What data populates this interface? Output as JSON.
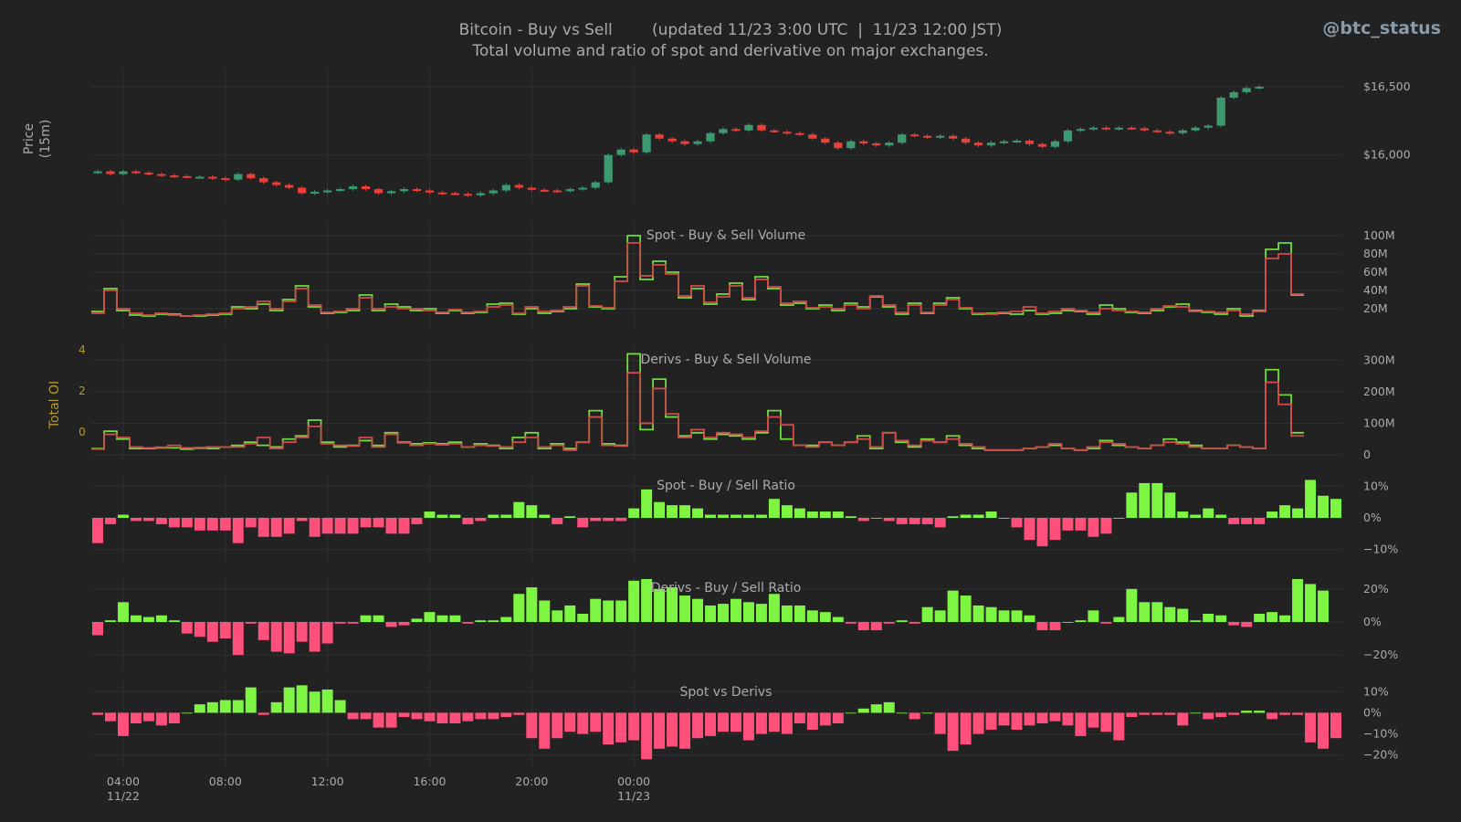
{
  "header": {
    "title": "Bitcoin - Buy vs Sell        (updated 11/23 3:00 UTC  |  11/23 12:00 JST)",
    "subtitle": "Total volume and ratio of spot and derivative on major exchanges.",
    "handle": "@btc_status"
  },
  "colors": {
    "background": "#222222",
    "grid": "#313131",
    "text": "#aaaaaa",
    "candle_up": "#3d9970",
    "candle_down": "#e8403a",
    "buy_line": "#6fdc3c",
    "sell_line": "#d24b4b",
    "bar_pos": "#7ef542",
    "bar_neg": "#ff4f7b",
    "oi_axis": "#b89a2a"
  },
  "chart_data": [
    {
      "id": "price",
      "type": "candlestick",
      "ylabel": "Price\n(15m)",
      "ylim": [
        15650,
        16600
      ],
      "yticks": [
        {
          "v": 16000,
          "label": "$16,000"
        },
        {
          "v": 16500,
          "label": "$16,500"
        }
      ],
      "x_unit": "hours since 11/22 02:45 UTC (30-min candles)",
      "x_ticks": [
        {
          "x": 1.25,
          "label": "04:00",
          "sub": "11/22"
        },
        {
          "x": 5.25,
          "label": "08:00",
          "sub": ""
        },
        {
          "x": 9.25,
          "label": "12:00",
          "sub": ""
        },
        {
          "x": 13.25,
          "label": "16:00",
          "sub": ""
        },
        {
          "x": 17.25,
          "label": "20:00",
          "sub": ""
        },
        {
          "x": 21.25,
          "label": "00:00",
          "sub": "11/23"
        }
      ],
      "closes": [
        15880,
        15860,
        15880,
        15870,
        15860,
        15850,
        15845,
        15840,
        15840,
        15830,
        15820,
        15860,
        15830,
        15800,
        15780,
        15760,
        15720,
        15730,
        15740,
        15750,
        15770,
        15750,
        15720,
        15735,
        15750,
        15740,
        15725,
        15720,
        15715,
        15705,
        15720,
        15740,
        15780,
        15760,
        15745,
        15740,
        15735,
        15750,
        15760,
        15800,
        16000,
        16040,
        16020,
        16150,
        16120,
        16100,
        16080,
        16100,
        16160,
        16190,
        16180,
        16220,
        16180,
        16170,
        16160,
        16150,
        16120,
        16090,
        16050,
        16100,
        16085,
        16070,
        16090,
        16150,
        16140,
        16130,
        16140,
        16120,
        16090,
        16070,
        16090,
        16100,
        16105,
        16080,
        16060,
        16100,
        16180,
        16190,
        16200,
        16190,
        16200,
        16195,
        16180,
        16170,
        16160,
        16180,
        16200,
        16215,
        16420,
        16460,
        16490,
        16500
      ]
    },
    {
      "id": "spot-volume",
      "type": "step-line",
      "title": "Spot - Buy & Sell Volume",
      "ylim": [
        0,
        110
      ],
      "yticks": [
        {
          "v": 20,
          "label": "20M"
        },
        {
          "v": 40,
          "label": "40M"
        },
        {
          "v": 60,
          "label": "60M"
        },
        {
          "v": 80,
          "label": "80M"
        },
        {
          "v": 100,
          "label": "100M"
        }
      ],
      "series": [
        {
          "name": "Buy",
          "color": "#6fdc3c",
          "values": [
            17,
            42,
            18,
            13,
            12,
            14,
            14,
            12,
            12,
            13,
            14,
            22,
            20,
            25,
            18,
            30,
            45,
            22,
            15,
            16,
            18,
            35,
            18,
            25,
            22,
            18,
            20,
            15,
            18,
            15,
            16,
            25,
            26,
            14,
            20,
            15,
            17,
            20,
            47,
            22,
            20,
            55,
            100,
            52,
            72,
            60,
            32,
            42,
            25,
            36,
            48,
            30,
            55,
            42,
            24,
            26,
            20,
            24,
            18,
            26,
            22,
            33,
            22,
            14,
            26,
            15,
            26,
            32,
            20,
            14,
            15,
            15,
            14,
            18,
            14,
            15,
            18,
            17,
            14,
            24,
            20,
            16,
            15,
            18,
            22,
            25,
            18,
            16,
            14,
            20,
            12,
            18,
            85,
            92,
            35
          ]
        },
        {
          "name": "Sell",
          "color": "#d24b4b",
          "values": [
            15,
            40,
            20,
            15,
            13,
            15,
            13,
            12,
            13,
            14,
            15,
            20,
            22,
            28,
            20,
            28,
            42,
            24,
            16,
            17,
            20,
            32,
            20,
            22,
            20,
            20,
            18,
            16,
            19,
            16,
            17,
            22,
            24,
            15,
            22,
            17,
            18,
            22,
            45,
            23,
            21,
            50,
            92,
            56,
            68,
            58,
            34,
            45,
            27,
            33,
            45,
            32,
            52,
            44,
            26,
            28,
            21,
            22,
            20,
            24,
            20,
            34,
            24,
            16,
            24,
            16,
            24,
            30,
            21,
            15,
            14,
            16,
            17,
            22,
            15,
            17,
            20,
            18,
            16,
            20,
            18,
            17,
            16,
            20,
            23,
            22,
            17,
            17,
            16,
            18,
            14,
            17,
            75,
            80,
            36
          ]
        }
      ]
    },
    {
      "id": "derivs-volume",
      "type": "step-line",
      "title": "Derivs - Buy & Sell Volume",
      "ylim": [
        0,
        330
      ],
      "yticks": [
        {
          "v": 0,
          "label": "0"
        },
        {
          "v": 100,
          "label": "100M"
        },
        {
          "v": 200,
          "label": "200M"
        },
        {
          "v": 300,
          "label": "300M"
        }
      ],
      "left_axis": {
        "label": "Total OI",
        "ticks": [
          "4",
          "2",
          "0"
        ]
      },
      "series": [
        {
          "name": "Buy",
          "color": "#6fdc3c",
          "values": [
            20,
            75,
            50,
            20,
            20,
            22,
            22,
            18,
            22,
            20,
            25,
            30,
            40,
            30,
            25,
            50,
            60,
            110,
            40,
            25,
            30,
            45,
            30,
            70,
            40,
            35,
            38,
            35,
            40,
            25,
            35,
            30,
            20,
            55,
            70,
            20,
            35,
            20,
            40,
            140,
            35,
            30,
            320,
            80,
            240,
            120,
            60,
            70,
            50,
            65,
            60,
            50,
            70,
            140,
            50,
            30,
            30,
            40,
            30,
            40,
            60,
            20,
            70,
            40,
            25,
            50,
            40,
            60,
            30,
            20,
            15,
            15,
            15,
            20,
            25,
            30,
            20,
            15,
            20,
            45,
            30,
            25,
            20,
            30,
            50,
            40,
            30,
            20,
            20,
            30,
            25,
            20,
            270,
            190,
            70
          ]
        },
        {
          "name": "Sell",
          "color": "#d24b4b",
          "values": [
            18,
            65,
            55,
            25,
            22,
            24,
            30,
            22,
            20,
            25,
            25,
            25,
            35,
            55,
            20,
            40,
            55,
            90,
            35,
            30,
            28,
            55,
            25,
            65,
            38,
            30,
            35,
            32,
            35,
            25,
            30,
            28,
            25,
            40,
            55,
            25,
            30,
            15,
            40,
            120,
            30,
            28,
            260,
            100,
            210,
            130,
            55,
            80,
            55,
            70,
            65,
            55,
            75,
            120,
            95,
            30,
            25,
            40,
            30,
            40,
            50,
            25,
            70,
            45,
            30,
            45,
            40,
            50,
            35,
            25,
            15,
            15,
            15,
            20,
            25,
            35,
            20,
            15,
            25,
            40,
            35,
            25,
            20,
            30,
            40,
            35,
            25,
            20,
            20,
            30,
            25,
            20,
            230,
            160,
            60
          ]
        }
      ]
    },
    {
      "id": "spot-ratio",
      "type": "bar",
      "title": "Spot - Buy / Sell Ratio",
      "ylim": [
        -13,
        13
      ],
      "yticks": [
        {
          "v": 10,
          "label": "10%"
        },
        {
          "v": 0,
          "label": "0%"
        },
        {
          "v": -10,
          "label": "−10%"
        }
      ],
      "values": [
        -8,
        -2,
        1,
        -1,
        -1,
        -2,
        -3,
        -3,
        -4,
        -4,
        -4,
        -8,
        -3,
        -6,
        -6,
        -5,
        -1,
        -6,
        -5,
        -5,
        -5,
        -3,
        -3,
        -5,
        -5,
        -2,
        2,
        1,
        1,
        -2,
        -1,
        1,
        1,
        5,
        4,
        1,
        -2,
        0.5,
        -3,
        -1,
        -1,
        -1,
        3,
        9,
        5,
        4,
        4,
        3,
        1,
        1,
        1,
        1,
        1,
        6,
        4,
        3,
        2,
        2,
        2,
        0.5,
        -1,
        0,
        -1,
        -2,
        -2,
        -2,
        -3,
        0.5,
        1,
        1,
        2,
        0,
        -3,
        -7,
        -9,
        -7,
        -4,
        -4,
        -6,
        -5,
        0,
        8,
        11,
        11,
        8,
        2,
        1,
        3,
        1,
        -2,
        -2,
        -2,
        2,
        4,
        3,
        12,
        7,
        6
      ]
    },
    {
      "id": "derivs-ratio",
      "type": "bar",
      "title": "Derivs - Buy / Sell Ratio",
      "ylim": [
        -26,
        26
      ],
      "yticks": [
        {
          "v": 20,
          "label": "20%"
        },
        {
          "v": 0,
          "label": "0%"
        },
        {
          "v": -20,
          "label": "−20%"
        }
      ],
      "values": [
        -8,
        1,
        12,
        4,
        3,
        4,
        1,
        -7,
        -9,
        -12,
        -10,
        -20,
        -1,
        -11,
        -18,
        -19,
        -12,
        -18,
        -13,
        -1,
        -1,
        4,
        4,
        -3,
        -2,
        2,
        6,
        4,
        4,
        -1,
        1,
        1,
        3,
        17,
        21,
        13,
        7,
        10,
        5,
        14,
        13,
        13,
        25,
        26,
        20,
        21,
        16,
        14,
        10,
        11,
        14,
        12,
        11,
        17,
        10,
        10,
        7,
        6,
        3,
        -1,
        -5,
        -5,
        -1,
        1,
        -1,
        9,
        7,
        19,
        16,
        10,
        9,
        7,
        7,
        4,
        -5,
        -5,
        0,
        1,
        7,
        -1,
        3,
        20,
        12,
        12,
        9,
        8,
        1,
        5,
        4,
        -2,
        -3,
        5,
        6,
        4,
        26,
        23,
        19
      ]
    },
    {
      "id": "spot-vs-derivs",
      "type": "bar",
      "title": "Spot vs Derivs",
      "ylim": [
        -24,
        14
      ],
      "yticks": [
        {
          "v": 10,
          "label": "10%"
        },
        {
          "v": 0,
          "label": "0%"
        },
        {
          "v": -10,
          "label": "−10%"
        },
        {
          "v": -20,
          "label": "−20%"
        }
      ],
      "values": [
        -1,
        -4,
        -11,
        -5,
        -4,
        -6,
        -5,
        0,
        4,
        5,
        6,
        6,
        12,
        -1,
        5,
        12,
        13,
        10,
        11,
        6,
        -3,
        -3,
        -7,
        -7,
        -2,
        -3,
        -4,
        -5,
        -5,
        -4,
        -3,
        -3,
        -2,
        -1,
        -12,
        -17,
        -12,
        -9,
        -10,
        -9,
        -15,
        -14,
        -13,
        -22,
        -17,
        -16,
        -17,
        -12,
        -11,
        -9,
        -9,
        -13,
        -10,
        -9,
        -10,
        -5,
        -8,
        -6,
        -5,
        0,
        2,
        4,
        5,
        0,
        -3,
        0,
        -10,
        -18,
        -15,
        -10,
        -8,
        -6,
        -8,
        -6,
        -5,
        -4,
        -6,
        -11,
        -7,
        -9,
        -13,
        -2,
        -1,
        -1,
        -1,
        -6,
        0,
        -3,
        -2,
        -1,
        1,
        1,
        -3,
        -1,
        -1,
        -14,
        -17,
        -12
      ]
    }
  ]
}
